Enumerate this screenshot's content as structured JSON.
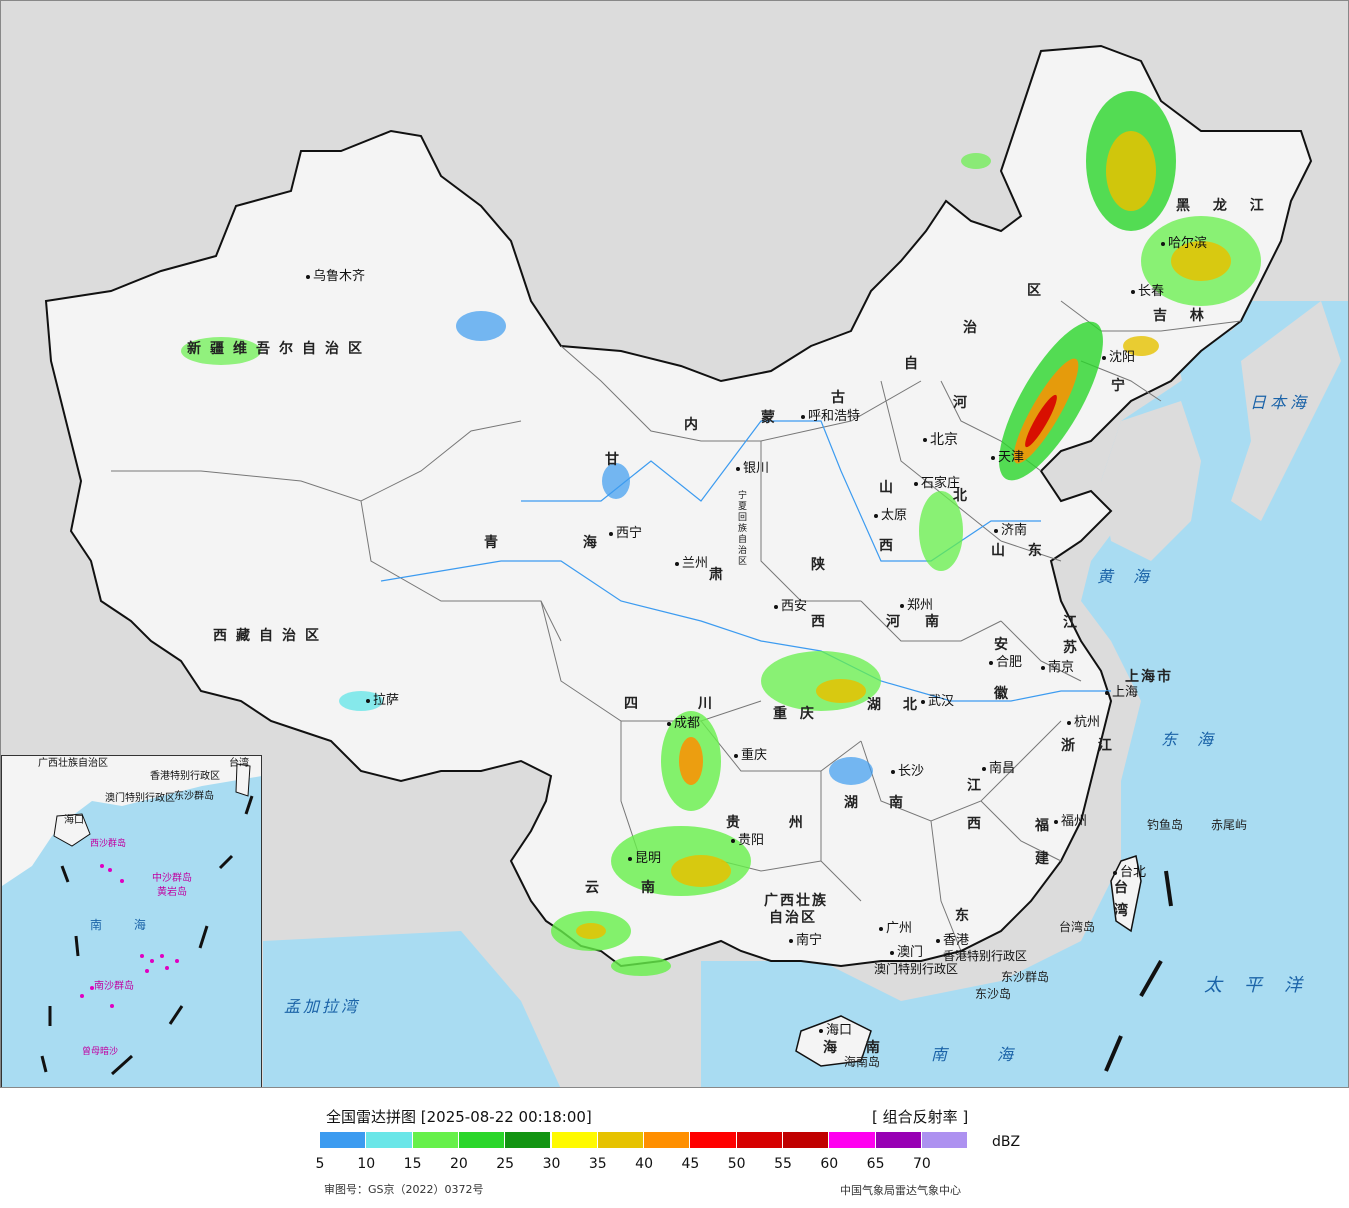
{
  "map": {
    "provinces": [
      {
        "id": "xinjiang",
        "text": "新疆维吾尔自治区"
      },
      {
        "id": "xizang",
        "text": "西藏自治区"
      },
      {
        "id": "qinghai",
        "text": "青 海"
      },
      {
        "id": "gansu",
        "text": "甘"
      },
      {
        "id": "gansu2",
        "text": "肃"
      },
      {
        "id": "neimenggu1",
        "text": "内"
      },
      {
        "id": "neimenggu2",
        "text": "蒙"
      },
      {
        "id": "neimenggu3",
        "text": "古"
      },
      {
        "id": "neimenggu4",
        "text": "自"
      },
      {
        "id": "neimenggu5",
        "text": "治"
      },
      {
        "id": "neimenggu6",
        "text": "区"
      },
      {
        "id": "heilongjiang",
        "text": "黑 龙 江"
      },
      {
        "id": "jilin",
        "text": "吉 林"
      },
      {
        "id": "liaoning",
        "text": "宁"
      },
      {
        "id": "hebei1",
        "text": "河"
      },
      {
        "id": "hebei2",
        "text": "北"
      },
      {
        "id": "shanxi1",
        "text": "山"
      },
      {
        "id": "shanxi2",
        "text": "西"
      },
      {
        "id": "shandong",
        "text": "山 东"
      },
      {
        "id": "shaanxi1",
        "text": "陕"
      },
      {
        "id": "shaanxi2",
        "text": "西"
      },
      {
        "id": "henan1",
        "text": "河"
      },
      {
        "id": "henan2",
        "text": "南"
      },
      {
        "id": "jiangsu1",
        "text": "江"
      },
      {
        "id": "jiangsu2",
        "text": "苏"
      },
      {
        "id": "anhui1",
        "text": "安"
      },
      {
        "id": "anhui2",
        "text": "徽"
      },
      {
        "id": "shanghai",
        "text": "上海市"
      },
      {
        "id": "zhejiang",
        "text": "浙 江"
      },
      {
        "id": "hubei1",
        "text": "湖"
      },
      {
        "id": "hubei2",
        "text": "北"
      },
      {
        "id": "sichuan1",
        "text": "四"
      },
      {
        "id": "sichuan2",
        "text": "川"
      },
      {
        "id": "chongqing",
        "text": "重 庆"
      },
      {
        "id": "guizhou",
        "text": "贵 州"
      },
      {
        "id": "hunan1",
        "text": "湖"
      },
      {
        "id": "hunan2",
        "text": "南"
      },
      {
        "id": "jiangxi1",
        "text": "江"
      },
      {
        "id": "jiangxi2",
        "text": "西"
      },
      {
        "id": "fujian1",
        "text": "福"
      },
      {
        "id": "fujian2",
        "text": "建"
      },
      {
        "id": "yunnan1",
        "text": "云"
      },
      {
        "id": "yunnan2",
        "text": "南"
      },
      {
        "id": "guangxi",
        "text": "广西壮族"
      },
      {
        "id": "guangxi2",
        "text": "自治区"
      },
      {
        "id": "guangdong",
        "text": "东"
      },
      {
        "id": "hainan",
        "text": "海 南"
      },
      {
        "id": "taiwan1",
        "text": "台"
      },
      {
        "id": "taiwan2",
        "text": "湾"
      },
      {
        "id": "ningxia",
        "text": "宁夏回族自治区"
      },
      {
        "id": "hk",
        "text": "香港特别行政区"
      },
      {
        "id": "macau",
        "text": "澳门特别行政区"
      }
    ],
    "cities": [
      {
        "id": "urumqi",
        "text": "乌鲁木齐"
      },
      {
        "id": "lhasa",
        "text": "拉萨"
      },
      {
        "id": "xining",
        "text": "西宁"
      },
      {
        "id": "lanzhou",
        "text": "兰州"
      },
      {
        "id": "yinchuan",
        "text": "银川"
      },
      {
        "id": "hohhot",
        "text": "呼和浩特"
      },
      {
        "id": "beijing",
        "text": "北京"
      },
      {
        "id": "tianjin",
        "text": "天津"
      },
      {
        "id": "shijiazhuang",
        "text": "石家庄"
      },
      {
        "id": "taiyuan",
        "text": "太原"
      },
      {
        "id": "jinan",
        "text": "济南"
      },
      {
        "id": "xian",
        "text": "西安"
      },
      {
        "id": "zhengzhou",
        "text": "郑州"
      },
      {
        "id": "hefei",
        "text": "合肥"
      },
      {
        "id": "nanjing",
        "text": "南京"
      },
      {
        "id": "shanghai_c",
        "text": "上海"
      },
      {
        "id": "hangzhou",
        "text": "杭州"
      },
      {
        "id": "wuhan",
        "text": "武汉"
      },
      {
        "id": "chengdu",
        "text": "成都"
      },
      {
        "id": "chongqing_c",
        "text": "重庆"
      },
      {
        "id": "changsha",
        "text": "长沙"
      },
      {
        "id": "nanchang",
        "text": "南昌"
      },
      {
        "id": "fuzhou",
        "text": "福州"
      },
      {
        "id": "guiyang",
        "text": "贵阳"
      },
      {
        "id": "kunming",
        "text": "昆明"
      },
      {
        "id": "nanning",
        "text": "南宁"
      },
      {
        "id": "guangzhou",
        "text": "广州"
      },
      {
        "id": "hongkong",
        "text": "香港"
      },
      {
        "id": "macau_c",
        "text": "澳门"
      },
      {
        "id": "haikou",
        "text": "海口"
      },
      {
        "id": "taibei",
        "text": "台北"
      },
      {
        "id": "shenyang",
        "text": "沈阳"
      },
      {
        "id": "changchun",
        "text": "长春"
      },
      {
        "id": "harbin",
        "text": "哈尔滨"
      }
    ],
    "seas": [
      {
        "id": "japan-sea",
        "text": "日本海"
      },
      {
        "id": "yellow-sea",
        "text": "黄海"
      },
      {
        "id": "east-sea",
        "text": "东海"
      },
      {
        "id": "pacific",
        "text": "太平洋"
      },
      {
        "id": "south-sea",
        "text": "南海"
      },
      {
        "id": "bengal",
        "text": "孟加拉湾"
      }
    ],
    "islands": [
      {
        "id": "diaoyu",
        "text": "钓鱼岛"
      },
      {
        "id": "chiwei",
        "text": "赤尾屿"
      },
      {
        "id": "taiwan-island",
        "text": "台湾岛"
      },
      {
        "id": "dongsha-qd",
        "text": "东沙群岛"
      },
      {
        "id": "dongsha",
        "text": "东沙岛"
      },
      {
        "id": "hainan-island",
        "text": "海南岛"
      }
    ],
    "inset_labels": [
      {
        "id": "inset-gx",
        "text": "广西壮族自治区"
      },
      {
        "id": "inset-hk",
        "text": "香港特别行政区"
      },
      {
        "id": "inset-mo",
        "text": "澳门特别行政区"
      },
      {
        "id": "inset-dongsha",
        "text": "东沙群岛"
      },
      {
        "id": "inset-taiwan",
        "text": "台湾"
      },
      {
        "id": "inset-haikou",
        "text": "海口"
      },
      {
        "id": "inset-xisha",
        "text": "西沙群岛"
      },
      {
        "id": "inset-zhongsha",
        "text": "中沙群岛"
      },
      {
        "id": "inset-huangyan",
        "text": "黄岩岛"
      },
      {
        "id": "inset-nanhai",
        "text": "南 海"
      },
      {
        "id": "inset-nansha",
        "text": "南沙群岛"
      },
      {
        "id": "inset-zengmu",
        "text": "曾母暗沙"
      }
    ]
  },
  "legend": {
    "title": "全国雷达拼图 [2025-08-22 00:18:00]",
    "product": "[ 组合反射率 ]",
    "unit": "dBZ",
    "ticks": [
      "5",
      "10",
      "15",
      "20",
      "25",
      "30",
      "35",
      "40",
      "45",
      "50",
      "55",
      "60",
      "65",
      "70"
    ],
    "colors": [
      "#3c9bf0",
      "#6ae6e8",
      "#66f04a",
      "#2ad62a",
      "#129412",
      "#fffa00",
      "#e6c200",
      "#ff8f00",
      "#ff0000",
      "#d60000",
      "#c00000",
      "#ff00f0",
      "#9800b4",
      "#ad91f0"
    ],
    "review_no": "审图号：GS京（2022）0372号",
    "source": "中国气象局雷达气象中心"
  }
}
